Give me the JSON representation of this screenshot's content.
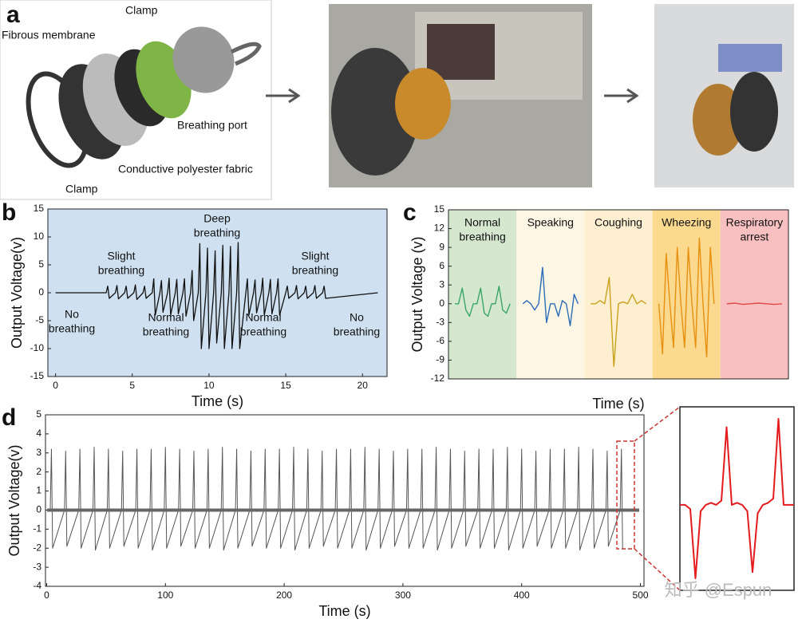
{
  "panel_labels": [
    "a",
    "b",
    "c",
    "d"
  ],
  "diagram": {
    "labels": [
      "Clamp",
      "Fibrous membrane",
      "Breathing port",
      "Conductive polyester fabric",
      "Clamp"
    ]
  },
  "watermark": "知乎 @Espun",
  "chart_data": [
    {
      "type": "line",
      "background": "#cfe0f1",
      "ylabel": "Output Voltage(v)",
      "xlabel": "Time (s)",
      "annotations": [
        [
          "No",
          "breathing"
        ],
        [
          "Slight",
          "breathing"
        ],
        [
          "Normal",
          "breathing"
        ],
        [
          "Deep",
          "breathing"
        ],
        [
          "Normal",
          "breathing"
        ],
        [
          "Slight",
          "breathing"
        ],
        [
          "No",
          "breathing"
        ]
      ],
      "xlim": [
        -0.5,
        21.6
      ],
      "ylim": [
        -15,
        15
      ],
      "xticks": [
        0,
        5,
        10,
        15,
        20
      ],
      "yticks": [
        -15,
        -10,
        -5,
        0,
        5,
        10,
        15
      ],
      "x": [
        0,
        3.3,
        3.4,
        3.5,
        3.9,
        4.0,
        4.1,
        4.5,
        4.6,
        4.7,
        5.1,
        5.2,
        5.3,
        5.7,
        5.8,
        5.9,
        6.3,
        6.4,
        6.5,
        6.8,
        6.9,
        7.0,
        7.3,
        7.4,
        7.5,
        7.8,
        7.9,
        8.0,
        8.3,
        8.4,
        8.5,
        8.8,
        8.9,
        9.0,
        9.3,
        9.4,
        9.5,
        9.8,
        9.9,
        10.0,
        10.3,
        10.4,
        10.5,
        10.8,
        10.9,
        11.0,
        11.3,
        11.4,
        11.5,
        11.8,
        11.9,
        12.0,
        12.4,
        12.5,
        12.6,
        12.9,
        13.0,
        13.1,
        13.4,
        13.5,
        13.6,
        13.9,
        14.0,
        14.1,
        14.4,
        14.5,
        14.6,
        15.0,
        15.1,
        15.2,
        15.6,
        15.7,
        15.8,
        16.2,
        16.3,
        16.4,
        16.8,
        16.9,
        17.0,
        17.4,
        17.5,
        17.6,
        21
      ],
      "series": [
        {
          "color": "#111111",
          "values": [
            0,
            0,
            1.2,
            -1.0,
            0,
            1.3,
            -1.1,
            0,
            1.2,
            -1.0,
            0,
            1.4,
            -1.2,
            0,
            1.2,
            -1.0,
            0,
            2.5,
            -4,
            0,
            2.2,
            -3.5,
            0,
            2.6,
            -4,
            0,
            2.4,
            -3.8,
            0,
            2.5,
            -4.2,
            0,
            4,
            -5,
            0,
            8.8,
            -10,
            0,
            8,
            -10,
            0,
            7.5,
            -9,
            0,
            8.5,
            -10,
            0,
            8.3,
            -10,
            0,
            9,
            -10,
            0,
            2.5,
            -4,
            0,
            2.3,
            -3.6,
            0,
            2.6,
            -4,
            0,
            2.4,
            -3.8,
            0,
            2.5,
            -4,
            0,
            1.2,
            -1.0,
            0,
            1.3,
            -1.1,
            0,
            1.2,
            -1.0,
            0,
            1.3,
            -1.0,
            0,
            1.2,
            -1.0,
            0
          ]
        }
      ]
    },
    {
      "type": "segments",
      "ylabel": "Output Voltage (v)",
      "xlabel": "Time (s)",
      "ylim": [
        -12,
        15
      ],
      "yticks": [
        -12,
        -9,
        -6,
        -3,
        0,
        3,
        6,
        9,
        12,
        15
      ],
      "series": [
        {
          "name": [
            "Normal",
            "breathing"
          ],
          "color": "#3aa567",
          "background": "#d5e8cf",
          "values": [
            0,
            0,
            2.5,
            -1,
            -2,
            0,
            0,
            2.5,
            -1.5,
            -2,
            0,
            0,
            2.8,
            -1,
            -1.5,
            0
          ]
        },
        {
          "name": [
            "Speaking"
          ],
          "color": "#2b6cb8",
          "background": "#fdf6e4",
          "values": [
            0,
            0.5,
            0,
            -1,
            0,
            5.8,
            -3,
            0,
            0,
            -2,
            0.5,
            0,
            -3.5,
            1.5,
            0
          ]
        },
        {
          "name": [
            "Coughing"
          ],
          "color": "#c9a21a",
          "background": "#fdefd0",
          "values": [
            0,
            0,
            0.5,
            0,
            4.2,
            -10,
            0,
            0.3,
            0,
            1.5,
            0,
            0.5,
            0
          ]
        },
        {
          "name": [
            "Wheezing"
          ],
          "color": "#e8900f",
          "background": "#fbd98e",
          "values": [
            0,
            -8,
            8,
            0,
            -7,
            9,
            0,
            -7,
            9,
            0,
            -7,
            10.5,
            0,
            -8.5,
            9,
            0
          ]
        },
        {
          "name": [
            "Respiratory",
            "arrest"
          ],
          "color": "#e04848",
          "background": "#f8c0c0",
          "values": [
            0,
            0.1,
            -0.1,
            0,
            0.1,
            0,
            -0.1,
            0
          ]
        }
      ]
    },
    {
      "type": "line",
      "background": "#ffffff",
      "ylabel": "Output Voltage(v)",
      "xlabel": "Time (s)",
      "xlim": [
        -1,
        503
      ],
      "ylim": [
        -4,
        5
      ],
      "xticks": [
        0,
        100,
        200,
        300,
        400,
        500
      ],
      "yticks": [
        -4,
        -3,
        -2,
        -1,
        0,
        1,
        2,
        3,
        4,
        5
      ],
      "x": [
        3,
        4,
        5,
        15,
        16,
        17,
        27,
        28,
        29,
        39,
        40,
        41,
        51,
        52,
        53,
        63,
        64,
        65,
        75,
        76,
        77,
        87,
        88,
        89,
        99,
        100,
        101,
        111,
        112,
        113,
        123,
        124,
        125,
        135,
        136,
        137,
        147,
        148,
        149,
        159,
        160,
        161,
        171,
        172,
        173,
        183,
        184,
        185,
        195,
        196,
        197,
        207,
        208,
        209,
        219,
        220,
        221,
        231,
        232,
        233,
        243,
        244,
        245,
        255,
        256,
        257,
        267,
        268,
        269,
        279,
        280,
        281,
        291,
        292,
        293,
        303,
        304,
        305,
        315,
        316,
        317,
        327,
        328,
        329,
        339,
        340,
        341,
        351,
        352,
        353,
        363,
        364,
        365,
        375,
        376,
        377,
        387,
        388,
        389,
        399,
        400,
        401,
        411,
        412,
        413,
        423,
        424,
        425,
        435,
        436,
        437,
        447,
        448,
        449,
        459,
        460,
        461,
        471,
        472,
        473,
        483,
        484,
        485
      ],
      "series": [
        {
          "color": "#555555",
          "values": [
            0,
            3.2,
            -2.0,
            0,
            3.1,
            -1.9,
            0,
            3.2,
            -2.0,
            0,
            3.3,
            -2.1,
            0,
            3.2,
            -2.0,
            0,
            3.1,
            -1.9,
            0,
            3.2,
            -2.0,
            0,
            3.2,
            -2.1,
            0,
            3.3,
            -2.0,
            0,
            3.2,
            -1.9,
            0,
            3.1,
            -2.0,
            0,
            3.2,
            -2.0,
            0,
            3.3,
            -2.1,
            0,
            3.2,
            -2.0,
            0,
            3.1,
            -1.9,
            0,
            3.2,
            -2.0,
            0,
            3.2,
            -2.0,
            0,
            3.3,
            -2.1,
            0,
            3.2,
            -2.0,
            0,
            3.1,
            -1.9,
            0,
            3.2,
            -2.0,
            0,
            3.2,
            -2.0,
            0,
            3.3,
            -2.1,
            0,
            3.2,
            -2.0,
            0,
            3.1,
            -1.9,
            0,
            3.2,
            -2.0,
            0,
            3.2,
            -2.0,
            0,
            3.3,
            -2.1,
            0,
            3.2,
            -2.0,
            0,
            3.1,
            -1.9,
            0,
            3.2,
            -2.0,
            0,
            3.2,
            -2.0,
            0,
            3.3,
            -2.1,
            0,
            3.2,
            -2.0,
            0,
            3.1,
            -1.9,
            0,
            3.2,
            -2.0,
            0,
            3.2,
            -2.0,
            0,
            3.3,
            -2.1,
            0,
            3.2,
            -2.0,
            0,
            3.1,
            -1.9,
            0,
            3.2,
            -2.0
          ]
        }
      ]
    },
    {
      "type": "inset",
      "series": [
        {
          "color": "#e41a1c",
          "values": [
            0,
            0,
            -0.2,
            -3.5,
            -0.3,
            0,
            0.1,
            0,
            0.2,
            3.7,
            0,
            0.1,
            0,
            -0.3,
            -3.2,
            -0.4,
            0,
            0.1,
            0.3,
            4.1,
            0,
            0,
            0
          ]
        }
      ]
    }
  ]
}
